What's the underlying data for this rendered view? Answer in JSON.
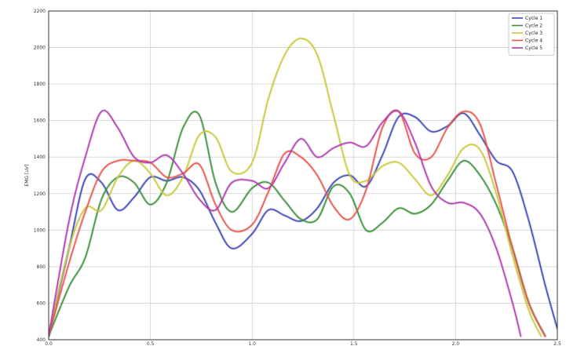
{
  "chart_data": {
    "type": "line",
    "title": "",
    "xlabel": "",
    "ylabel": "EMG [uV]",
    "xlim": [
      0,
      2.5
    ],
    "ylim": [
      400,
      2200
    ],
    "xticks": [
      0,
      0.5,
      1.0,
      1.5,
      2.0,
      2.5
    ],
    "xtick_labels": [
      "0.0",
      "0.5",
      "1.0",
      "1.5",
      "2.0",
      "2.5"
    ],
    "yticks": [
      400,
      600,
      800,
      1000,
      1200,
      1400,
      1600,
      1800,
      2000,
      2200
    ],
    "ytick_labels": [
      "400",
      "600",
      "800",
      "1000",
      "1200",
      "1400",
      "1600",
      "1800",
      "2000",
      "2200"
    ],
    "grid": true,
    "legend_position": "top-right",
    "series": [
      {
        "name": "Cycle 1",
        "color": "#3b46b8",
        "x": [
          0,
          0.1,
          0.18,
          0.26,
          0.34,
          0.42,
          0.5,
          0.58,
          0.66,
          0.74,
          0.82,
          0.9,
          1.0,
          1.08,
          1.16,
          1.24,
          1.32,
          1.4,
          1.48,
          1.56,
          1.64,
          1.72,
          1.8,
          1.88,
          1.96,
          2.04,
          2.12,
          2.2,
          2.28,
          2.36,
          2.44,
          2.5
        ],
        "y": [
          420,
          900,
          1280,
          1260,
          1110,
          1180,
          1290,
          1270,
          1290,
          1220,
          1040,
          900,
          980,
          1110,
          1080,
          1050,
          1120,
          1260,
          1300,
          1240,
          1410,
          1620,
          1620,
          1540,
          1570,
          1640,
          1520,
          1380,
          1320,
          1050,
          700,
          460
        ]
      },
      {
        "name": "Cycle 2",
        "color": "#3a8f3a",
        "x": [
          0,
          0.1,
          0.18,
          0.26,
          0.34,
          0.42,
          0.5,
          0.58,
          0.66,
          0.74,
          0.82,
          0.9,
          1.0,
          1.08,
          1.16,
          1.24,
          1.32,
          1.4,
          1.48,
          1.56,
          1.64,
          1.72,
          1.8,
          1.88,
          1.96,
          2.04,
          2.12,
          2.2,
          2.28,
          2.36,
          2.44
        ],
        "y": [
          420,
          690,
          850,
          1170,
          1290,
          1260,
          1140,
          1260,
          1560,
          1630,
          1260,
          1100,
          1230,
          1260,
          1160,
          1060,
          1060,
          1240,
          1200,
          1000,
          1040,
          1120,
          1090,
          1140,
          1270,
          1380,
          1300,
          1140,
          900,
          600,
          420
        ]
      },
      {
        "name": "Cycle 3",
        "color": "#c8c83a",
        "x": [
          0,
          0.1,
          0.18,
          0.26,
          0.34,
          0.42,
          0.5,
          0.58,
          0.66,
          0.74,
          0.82,
          0.9,
          1.0,
          1.08,
          1.16,
          1.24,
          1.32,
          1.4,
          1.48,
          1.56,
          1.64,
          1.72,
          1.8,
          1.88,
          1.96,
          2.04,
          2.12,
          2.2,
          2.28,
          2.36,
          2.42
        ],
        "y": [
          420,
          900,
          1120,
          1110,
          1290,
          1380,
          1310,
          1190,
          1290,
          1520,
          1510,
          1320,
          1370,
          1720,
          1960,
          2050,
          1960,
          1630,
          1300,
          1270,
          1350,
          1370,
          1280,
          1190,
          1300,
          1450,
          1440,
          1200,
          860,
          560,
          420
        ]
      },
      {
        "name": "Cycle 4",
        "color": "#e8544a",
        "x": [
          0,
          0.1,
          0.18,
          0.26,
          0.34,
          0.42,
          0.5,
          0.58,
          0.66,
          0.74,
          0.82,
          0.9,
          1.0,
          1.08,
          1.16,
          1.24,
          1.32,
          1.4,
          1.48,
          1.56,
          1.64,
          1.72,
          1.8,
          1.88,
          1.96,
          2.04,
          2.12,
          2.2,
          2.28,
          2.36,
          2.44
        ],
        "y": [
          420,
          820,
          1100,
          1320,
          1380,
          1380,
          1370,
          1290,
          1310,
          1360,
          1140,
          1000,
          1030,
          1210,
          1420,
          1400,
          1300,
          1130,
          1060,
          1220,
          1560,
          1650,
          1420,
          1400,
          1560,
          1650,
          1580,
          1250,
          900,
          600,
          420
        ]
      },
      {
        "name": "Cycle 5",
        "color": "#b03ab0",
        "x": [
          0,
          0.1,
          0.18,
          0.26,
          0.34,
          0.42,
          0.5,
          0.58,
          0.66,
          0.74,
          0.82,
          0.9,
          1.0,
          1.08,
          1.16,
          1.24,
          1.32,
          1.4,
          1.48,
          1.56,
          1.64,
          1.72,
          1.8,
          1.88,
          1.96,
          2.04,
          2.12,
          2.2,
          2.28,
          2.32
        ],
        "y": [
          420,
          1050,
          1400,
          1650,
          1560,
          1400,
          1370,
          1410,
          1310,
          1170,
          1110,
          1260,
          1270,
          1230,
          1370,
          1500,
          1400,
          1450,
          1480,
          1460,
          1590,
          1650,
          1480,
          1240,
          1150,
          1150,
          1090,
          900,
          600,
          420
        ]
      }
    ]
  }
}
